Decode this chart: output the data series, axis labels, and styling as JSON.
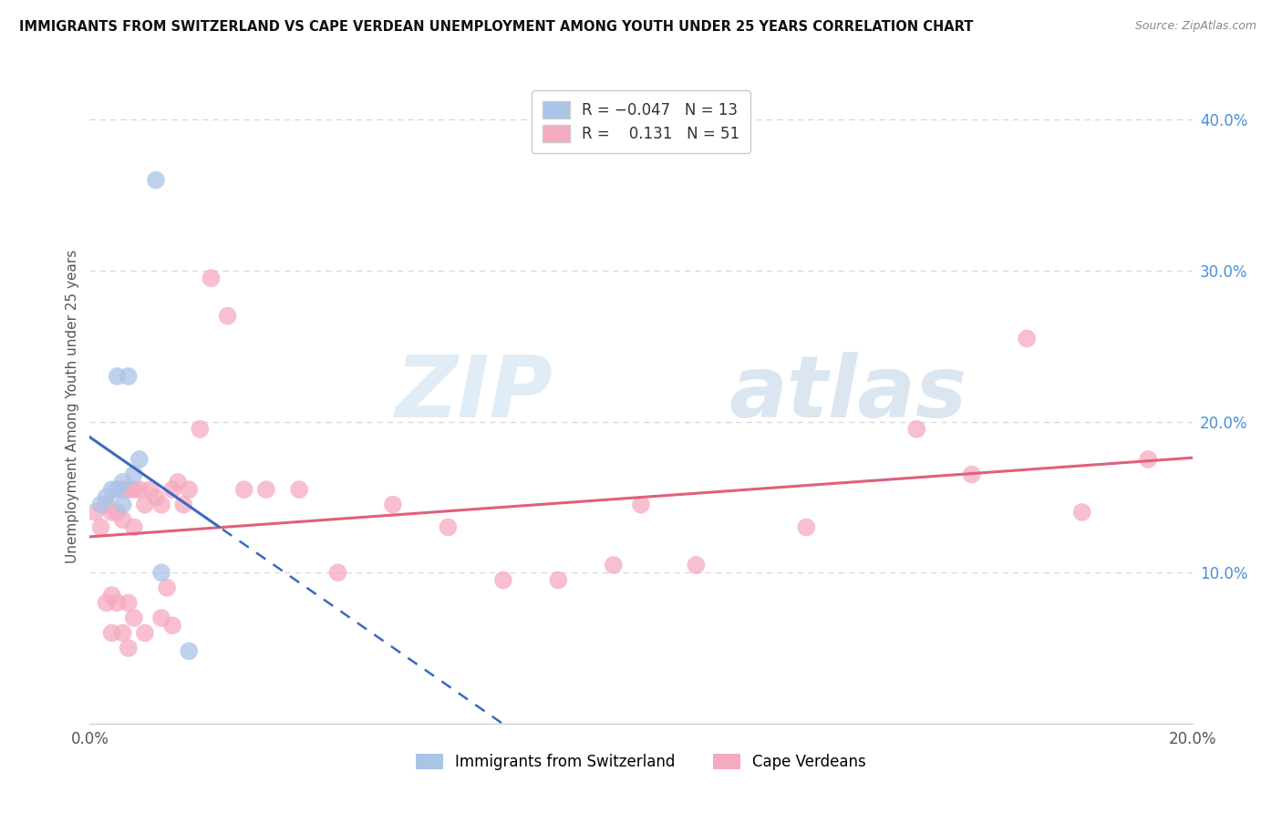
{
  "title": "IMMIGRANTS FROM SWITZERLAND VS CAPE VERDEAN UNEMPLOYMENT AMONG YOUTH UNDER 25 YEARS CORRELATION CHART",
  "source": "Source: ZipAtlas.com",
  "ylabel": "Unemployment Among Youth under 25 years",
  "xlim": [
    0.0,
    0.2
  ],
  "ylim": [
    0.0,
    0.42
  ],
  "xtick_positions": [
    0.0,
    0.05,
    0.1,
    0.15,
    0.2
  ],
  "xtick_labels": [
    "0.0%",
    "",
    "",
    "",
    "20.0%"
  ],
  "ytick_vals_right": [
    0.1,
    0.2,
    0.3,
    0.4
  ],
  "ytick_labels_right": [
    "10.0%",
    "20.0%",
    "30.0%",
    "40.0%"
  ],
  "swiss_R": -0.047,
  "swiss_N": 13,
  "cape_R": 0.131,
  "cape_N": 51,
  "swiss_color": "#aac4e8",
  "cape_color": "#f5aabf",
  "swiss_line_color": "#3a6abf",
  "cape_line_color": "#e0607a",
  "swiss_scatter_x": [
    0.002,
    0.003,
    0.004,
    0.005,
    0.005,
    0.006,
    0.006,
    0.007,
    0.008,
    0.009,
    0.012,
    0.013,
    0.018
  ],
  "swiss_scatter_y": [
    0.145,
    0.15,
    0.155,
    0.23,
    0.155,
    0.16,
    0.145,
    0.23,
    0.165,
    0.175,
    0.36,
    0.1,
    0.048
  ],
  "cape_scatter_x": [
    0.001,
    0.002,
    0.003,
    0.003,
    0.004,
    0.004,
    0.004,
    0.005,
    0.005,
    0.006,
    0.006,
    0.006,
    0.007,
    0.007,
    0.007,
    0.008,
    0.008,
    0.008,
    0.009,
    0.01,
    0.01,
    0.011,
    0.012,
    0.013,
    0.013,
    0.014,
    0.015,
    0.015,
    0.016,
    0.017,
    0.018,
    0.02,
    0.022,
    0.025,
    0.028,
    0.032,
    0.038,
    0.045,
    0.055,
    0.065,
    0.075,
    0.085,
    0.095,
    0.1,
    0.11,
    0.13,
    0.15,
    0.16,
    0.17,
    0.18,
    0.192
  ],
  "cape_scatter_y": [
    0.14,
    0.13,
    0.145,
    0.08,
    0.06,
    0.085,
    0.14,
    0.14,
    0.08,
    0.06,
    0.135,
    0.155,
    0.05,
    0.08,
    0.155,
    0.13,
    0.155,
    0.07,
    0.155,
    0.145,
    0.06,
    0.155,
    0.15,
    0.145,
    0.07,
    0.09,
    0.155,
    0.065,
    0.16,
    0.145,
    0.155,
    0.195,
    0.295,
    0.27,
    0.155,
    0.155,
    0.155,
    0.1,
    0.145,
    0.13,
    0.095,
    0.095,
    0.105,
    0.145,
    0.105,
    0.13,
    0.195,
    0.165,
    0.255,
    0.14,
    0.175
  ],
  "watermark_zip": "ZIP",
  "watermark_atlas": "atlas",
  "background_color": "#ffffff",
  "grid_color": "#d8d8d8",
  "grid_dash": [
    4,
    3
  ]
}
